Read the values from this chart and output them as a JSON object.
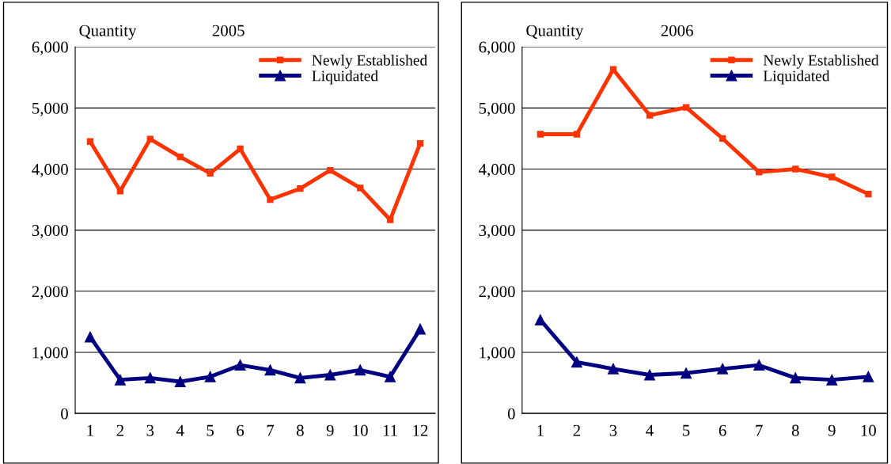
{
  "chart_data": [
    {
      "type": "line",
      "title": "2005",
      "ylabel": "Quantity",
      "categories": [
        "1",
        "2",
        "3",
        "4",
        "5",
        "6",
        "7",
        "8",
        "9",
        "10",
        "11",
        "12"
      ],
      "ylim": [
        0,
        6000
      ],
      "yticks": [
        {
          "value": 0,
          "label": "0"
        },
        {
          "value": 1000,
          "label": "1,000"
        },
        {
          "value": 2000,
          "label": "2,000"
        },
        {
          "value": 3000,
          "label": "3,000"
        },
        {
          "value": 4000,
          "label": "4,000"
        },
        {
          "value": 5000,
          "label": "5,000"
        },
        {
          "value": 6000,
          "label": "6,000"
        }
      ],
      "grid": "y",
      "legend": "top right",
      "series": [
        {
          "name": "Newly Established",
          "color": "#ff3300",
          "marker": "square",
          "values": [
            4450,
            3640,
            4490,
            4200,
            3930,
            4330,
            3500,
            3680,
            3980,
            3690,
            3170,
            4420
          ]
        },
        {
          "name": "Liquidated",
          "color": "#000080",
          "marker": "triangle",
          "values": [
            1250,
            550,
            580,
            520,
            600,
            790,
            710,
            580,
            630,
            710,
            600,
            1380
          ]
        }
      ]
    },
    {
      "type": "line",
      "title": "2006",
      "ylabel": "Quantity",
      "categories": [
        "1",
        "2",
        "3",
        "4",
        "5",
        "6",
        "7",
        "8",
        "9",
        "10"
      ],
      "ylim": [
        0,
        6000
      ],
      "yticks": [
        {
          "value": 0,
          "label": "0"
        },
        {
          "value": 1000,
          "label": "1,000"
        },
        {
          "value": 2000,
          "label": "2,000"
        },
        {
          "value": 3000,
          "label": "3,000"
        },
        {
          "value": 4000,
          "label": "4,000"
        },
        {
          "value": 5000,
          "label": "5,000"
        },
        {
          "value": 6000,
          "label": "6,000"
        }
      ],
      "grid": "y",
      "legend": "top right",
      "series": [
        {
          "name": "Newly Established",
          "color": "#ff3300",
          "marker": "square",
          "values": [
            4570,
            4570,
            5630,
            4880,
            5010,
            4500,
            3950,
            4000,
            3870,
            3590
          ]
        },
        {
          "name": "Liquidated",
          "color": "#000080",
          "marker": "triangle",
          "values": [
            1530,
            840,
            730,
            630,
            660,
            730,
            790,
            580,
            550,
            600
          ]
        }
      ]
    }
  ]
}
